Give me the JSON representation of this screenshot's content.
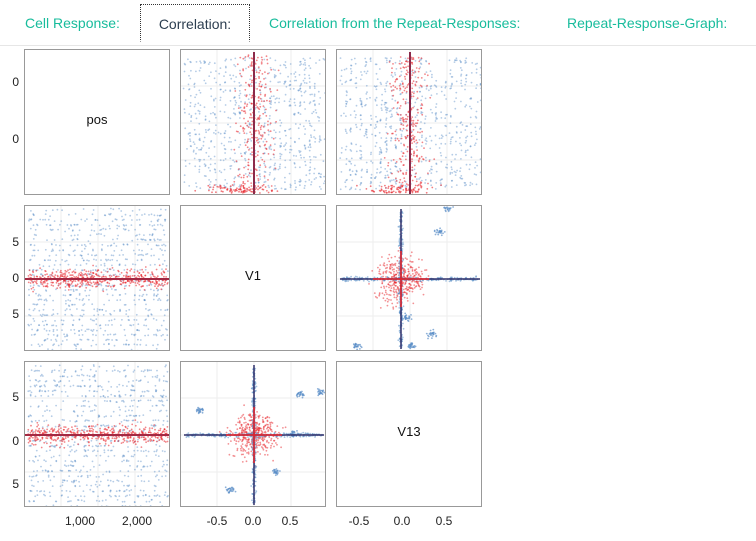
{
  "tabs": [
    {
      "label": "Cell Response:",
      "active": false
    },
    {
      "label": "Correlation:",
      "active": true
    },
    {
      "label": "Correlation from the Repeat-Responses:",
      "active": false
    },
    {
      "label": "Repeat-Response-Graph:",
      "active": false
    }
  ],
  "colors": {
    "accent": "#18bc9c",
    "red_points": "#e8232a",
    "blue_points": "#5b8fc7"
  },
  "chart_data": {
    "type": "scatter",
    "variables": [
      "pos",
      "V1",
      "V13"
    ],
    "diagonal_labels": [
      "pos",
      "V1",
      "V13"
    ],
    "row_tick_labels": [
      [
        "0",
        "0"
      ],
      [
        "5",
        "0",
        "5"
      ],
      [
        "5",
        "0",
        "5"
      ]
    ],
    "col_tick_labels": [
      [
        "1,000",
        "2,000"
      ],
      [
        "-0.5",
        "0.0",
        "0.5"
      ],
      [
        "-0.5",
        "0.0",
        "0.5"
      ]
    ],
    "pos_range": [
      0,
      2500
    ],
    "V_range": [
      -1.0,
      1.0
    ],
    "grid": true,
    "legend": "none"
  }
}
